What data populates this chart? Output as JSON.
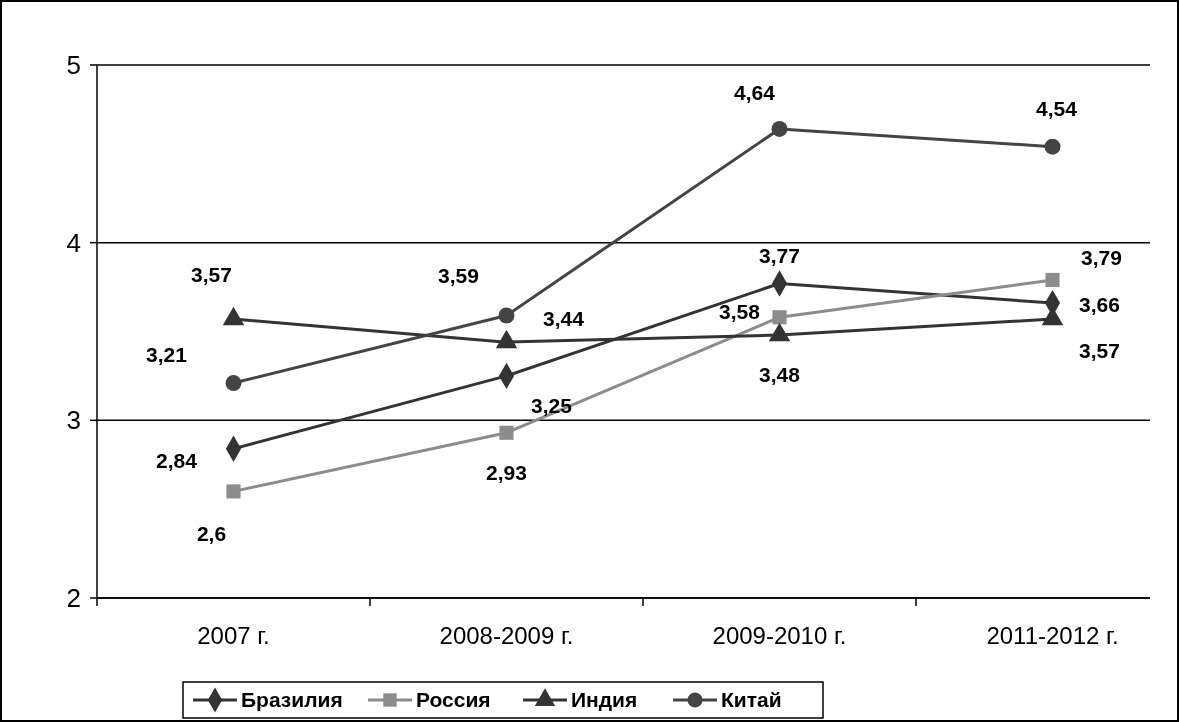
{
  "chart_data": {
    "type": "line",
    "categories": [
      "2007 г.",
      "2008-2009 г.",
      "2009-2010 г.",
      "2011-2012 г."
    ],
    "ylim": [
      2,
      5
    ],
    "yticks": [
      2,
      3,
      4,
      5
    ],
    "grid": "y",
    "legend": "bottom",
    "series": [
      {
        "name": "Бразилия",
        "color": "#333333",
        "marker": "diamond",
        "values": [
          2.84,
          3.25,
          3.77,
          3.66
        ],
        "value_labels": [
          "2,84",
          "3,25",
          "3,77",
          "3,66"
        ]
      },
      {
        "name": "Россия",
        "color": "#8c8c8c",
        "marker": "square",
        "values": [
          2.6,
          2.93,
          3.58,
          3.79
        ],
        "value_labels": [
          "2,6",
          "2,93",
          "3,58",
          "3,79"
        ]
      },
      {
        "name": "Индия",
        "color": "#333333",
        "marker": "triangle",
        "values": [
          3.57,
          3.44,
          3.48,
          3.57
        ],
        "value_labels": [
          "3,57",
          "3,44",
          "3,48",
          "3,57"
        ]
      },
      {
        "name": "Китай",
        "color": "#444444",
        "marker": "circle",
        "values": [
          3.21,
          3.59,
          4.64,
          4.54
        ],
        "value_labels": [
          "3,21",
          "3,59",
          "4,64",
          "4,54"
        ]
      }
    ]
  }
}
